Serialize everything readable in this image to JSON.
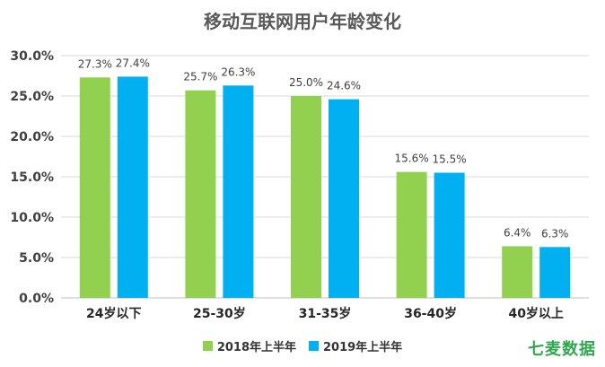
{
  "chart_data": {
    "type": "bar",
    "title": "移动互联网用户年龄变化",
    "categories": [
      "24岁以下",
      "25-30岁",
      "31-35岁",
      "36-40岁",
      "40岁以上"
    ],
    "series": [
      {
        "name": "2018年上半年",
        "values": [
          27.3,
          25.7,
          25.0,
          15.6,
          6.4
        ],
        "labels": [
          "27.3%",
          "25.7%",
          "25.0%",
          "15.6%",
          "6.4%"
        ],
        "color": "#92d050"
      },
      {
        "name": "2019年上半年",
        "values": [
          27.4,
          26.3,
          24.6,
          15.5,
          6.3
        ],
        "labels": [
          "27.4%",
          "26.3%",
          "24.6%",
          "15.5%",
          "6.3%"
        ],
        "color": "#00b0f0"
      }
    ],
    "ylim": [
      0,
      30
    ],
    "yticks": [
      "0.0%",
      "5.0%",
      "10.0%",
      "15.0%",
      "20.0%",
      "25.0%",
      "30.0%"
    ],
    "grid": true,
    "legend_position": "bottom",
    "xlabel": "",
    "ylabel": ""
  },
  "watermark": "七麦数据"
}
